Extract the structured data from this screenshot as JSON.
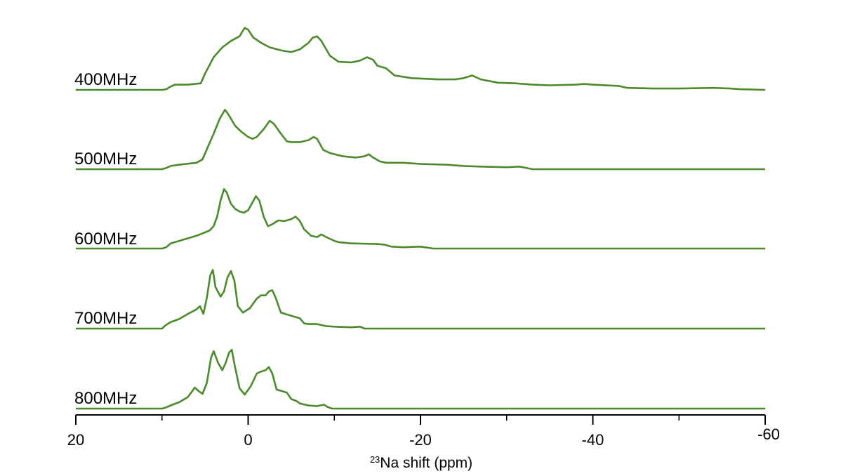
{
  "chart_data": {
    "type": "line",
    "layout": "stacked",
    "xlabel_sup": "23",
    "xlabel": "Na shift (ppm)",
    "xlim": [
      20,
      -60
    ],
    "xticks": [
      20,
      0,
      -20,
      -40,
      -60
    ],
    "minor_xticks": [
      10,
      -10,
      -30,
      -50
    ],
    "grid": false,
    "color": "#4a8a2c",
    "series": [
      {
        "name": "400MHz",
        "points": [
          [
            20,
            0
          ],
          [
            10,
            0
          ],
          [
            9.5,
            0.01
          ],
          [
            9,
            0.05
          ],
          [
            8.5,
            0.08
          ],
          [
            7,
            0.08
          ],
          [
            5.5,
            0.1
          ],
          [
            5,
            0.25
          ],
          [
            4,
            0.5
          ],
          [
            3,
            0.65
          ],
          [
            2,
            0.75
          ],
          [
            1,
            0.82
          ],
          [
            0.4,
            0.95
          ],
          [
            0,
            0.92
          ],
          [
            -0.6,
            0.8
          ],
          [
            -1.5,
            0.72
          ],
          [
            -2.5,
            0.65
          ],
          [
            -4,
            0.6
          ],
          [
            -5,
            0.58
          ],
          [
            -6,
            0.62
          ],
          [
            -7,
            0.72
          ],
          [
            -7.5,
            0.8
          ],
          [
            -8,
            0.82
          ],
          [
            -8.5,
            0.75
          ],
          [
            -9.5,
            0.52
          ],
          [
            -10.5,
            0.43
          ],
          [
            -12,
            0.42
          ],
          [
            -13,
            0.45
          ],
          [
            -13.8,
            0.5
          ],
          [
            -14.5,
            0.46
          ],
          [
            -15,
            0.37
          ],
          [
            -16,
            0.33
          ],
          [
            -17,
            0.22
          ],
          [
            -19,
            0.18
          ],
          [
            -22,
            0.16
          ],
          [
            -24,
            0.16
          ],
          [
            -25,
            0.18
          ],
          [
            -26,
            0.22
          ],
          [
            -27,
            0.16
          ],
          [
            -29,
            0.11
          ],
          [
            -31,
            0.1
          ],
          [
            -33,
            0.08
          ],
          [
            -35,
            0.07
          ],
          [
            -38,
            0.08
          ],
          [
            -39,
            0.09
          ],
          [
            -40,
            0.08
          ],
          [
            -43,
            0.06
          ],
          [
            -44,
            0.03
          ],
          [
            -47,
            0.02
          ],
          [
            -50,
            0.02
          ],
          [
            -54,
            0.03
          ],
          [
            -56,
            0.02
          ],
          [
            -57,
            0.01
          ],
          [
            -60,
            0
          ]
        ]
      },
      {
        "name": "500MHz",
        "points": [
          [
            20,
            0
          ],
          [
            10,
            0
          ],
          [
            9.5,
            0.02
          ],
          [
            9,
            0.05
          ],
          [
            8,
            0.07
          ],
          [
            6,
            0.1
          ],
          [
            5.3,
            0.15
          ],
          [
            4.5,
            0.4
          ],
          [
            4,
            0.55
          ],
          [
            3.3,
            0.78
          ],
          [
            2.7,
            0.92
          ],
          [
            2.3,
            0.85
          ],
          [
            1.5,
            0.67
          ],
          [
            0.8,
            0.58
          ],
          [
            0,
            0.5
          ],
          [
            -0.5,
            0.47
          ],
          [
            -1,
            0.5
          ],
          [
            -1.8,
            0.62
          ],
          [
            -2.5,
            0.75
          ],
          [
            -3,
            0.7
          ],
          [
            -3.8,
            0.55
          ],
          [
            -4.5,
            0.43
          ],
          [
            -5,
            0.42
          ],
          [
            -6,
            0.42
          ],
          [
            -7,
            0.45
          ],
          [
            -7.6,
            0.5
          ],
          [
            -8,
            0.47
          ],
          [
            -8.7,
            0.3
          ],
          [
            -9.5,
            0.25
          ],
          [
            -11,
            0.2
          ],
          [
            -12.5,
            0.18
          ],
          [
            -13.5,
            0.2
          ],
          [
            -14,
            0.23
          ],
          [
            -14.5,
            0.18
          ],
          [
            -15.3,
            0.12
          ],
          [
            -16,
            0.1
          ],
          [
            -18,
            0.1
          ],
          [
            -20,
            0.08
          ],
          [
            -23,
            0.07
          ],
          [
            -25,
            0.05
          ],
          [
            -27,
            0.04
          ],
          [
            -30,
            0.03
          ],
          [
            -31.5,
            0.04
          ],
          [
            -33,
            0
          ],
          [
            -60,
            0
          ]
        ]
      },
      {
        "name": "600MHz",
        "points": [
          [
            20,
            0
          ],
          [
            10,
            0
          ],
          [
            9.5,
            0.02
          ],
          [
            9,
            0.08
          ],
          [
            8,
            0.12
          ],
          [
            6,
            0.2
          ],
          [
            4.5,
            0.28
          ],
          [
            4,
            0.35
          ],
          [
            3.6,
            0.5
          ],
          [
            3.2,
            0.75
          ],
          [
            2.8,
            0.93
          ],
          [
            2.5,
            0.88
          ],
          [
            2,
            0.7
          ],
          [
            1.5,
            0.62
          ],
          [
            1,
            0.58
          ],
          [
            0.5,
            0.56
          ],
          [
            0,
            0.6
          ],
          [
            -0.5,
            0.72
          ],
          [
            -0.9,
            0.82
          ],
          [
            -1.3,
            0.75
          ],
          [
            -1.8,
            0.5
          ],
          [
            -2.3,
            0.35
          ],
          [
            -2.8,
            0.38
          ],
          [
            -3.5,
            0.44
          ],
          [
            -4.2,
            0.43
          ],
          [
            -5,
            0.46
          ],
          [
            -5.5,
            0.5
          ],
          [
            -6,
            0.43
          ],
          [
            -6.5,
            0.3
          ],
          [
            -7.3,
            0.2
          ],
          [
            -8,
            0.18
          ],
          [
            -8.5,
            0.22
          ],
          [
            -9.2,
            0.17
          ],
          [
            -10,
            0.12
          ],
          [
            -10.5,
            0.1
          ],
          [
            -12,
            0.08
          ],
          [
            -15,
            0.07
          ],
          [
            -15.8,
            0.06
          ],
          [
            -16.6,
            0.03
          ],
          [
            -18,
            0.02
          ],
          [
            -20,
            0.03
          ],
          [
            -21,
            0.01
          ],
          [
            -21.5,
            0
          ],
          [
            -60,
            0
          ]
        ]
      },
      {
        "name": "700MHz",
        "points": [
          [
            20,
            0
          ],
          [
            10,
            0
          ],
          [
            9.6,
            0.05
          ],
          [
            9,
            0.1
          ],
          [
            8,
            0.15
          ],
          [
            7,
            0.23
          ],
          [
            6,
            0.3
          ],
          [
            5.6,
            0.35
          ],
          [
            5.2,
            0.23
          ],
          [
            4.8,
            0.48
          ],
          [
            4.4,
            0.83
          ],
          [
            4.1,
            0.92
          ],
          [
            3.8,
            0.65
          ],
          [
            3.2,
            0.5
          ],
          [
            2.8,
            0.58
          ],
          [
            2.4,
            0.8
          ],
          [
            2,
            0.9
          ],
          [
            1.6,
            0.75
          ],
          [
            1.2,
            0.35
          ],
          [
            0.6,
            0.25
          ],
          [
            -0.2,
            0.32
          ],
          [
            -1,
            0.47
          ],
          [
            -1.5,
            0.52
          ],
          [
            -2,
            0.52
          ],
          [
            -2.4,
            0.58
          ],
          [
            -2.8,
            0.6
          ],
          [
            -3.2,
            0.48
          ],
          [
            -3.8,
            0.25
          ],
          [
            -5,
            0.2
          ],
          [
            -6,
            0.16
          ],
          [
            -6.5,
            0.08
          ],
          [
            -7,
            0.07
          ],
          [
            -8,
            0.07
          ],
          [
            -9,
            0.04
          ],
          [
            -10,
            0.03
          ],
          [
            -12,
            0.02
          ],
          [
            -13,
            0.03
          ],
          [
            -13.5,
            0
          ],
          [
            -60,
            0
          ]
        ]
      },
      {
        "name": "800MHz",
        "points": [
          [
            20,
            0
          ],
          [
            10,
            0
          ],
          [
            9.5,
            0.02
          ],
          [
            9,
            0.05
          ],
          [
            8,
            0.1
          ],
          [
            7,
            0.18
          ],
          [
            6.5,
            0.27
          ],
          [
            6.2,
            0.33
          ],
          [
            5.8,
            0.28
          ],
          [
            5.3,
            0.23
          ],
          [
            4.8,
            0.4
          ],
          [
            4.3,
            0.8
          ],
          [
            4,
            0.9
          ],
          [
            3.5,
            0.72
          ],
          [
            3,
            0.6
          ],
          [
            2.6,
            0.72
          ],
          [
            2.2,
            0.88
          ],
          [
            1.9,
            0.92
          ],
          [
            1.6,
            0.7
          ],
          [
            1,
            0.32
          ],
          [
            0.4,
            0.22
          ],
          [
            -0.3,
            0.35
          ],
          [
            -1,
            0.55
          ],
          [
            -1.5,
            0.58
          ],
          [
            -2,
            0.6
          ],
          [
            -2.4,
            0.65
          ],
          [
            -2.8,
            0.55
          ],
          [
            -3.3,
            0.3
          ],
          [
            -4,
            0.27
          ],
          [
            -4.5,
            0.25
          ],
          [
            -5,
            0.15
          ],
          [
            -5.6,
            0.12
          ],
          [
            -6,
            0.08
          ],
          [
            -7,
            0.05
          ],
          [
            -8,
            0.04
          ],
          [
            -8.8,
            0.06
          ],
          [
            -9.3,
            0.02
          ],
          [
            -9.8,
            0
          ],
          [
            -60,
            0
          ]
        ]
      }
    ]
  }
}
